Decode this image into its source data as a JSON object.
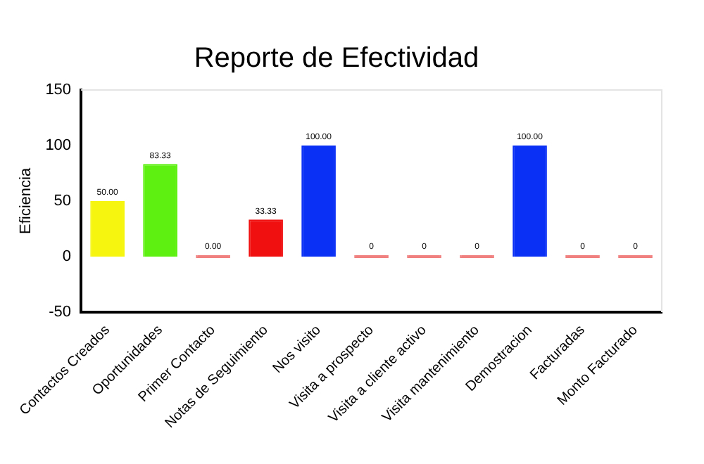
{
  "chart_data": {
    "type": "bar",
    "title": "Reporte de Efectividad",
    "ylabel": "Eficiencia",
    "categories": [
      "Contactos Creados",
      "Oportunidades",
      "Primer Contacto",
      "Notas de Seguimiento",
      "Nos visito",
      "Visita a prospecto",
      "Visita a cliente activo",
      "Visita mantenimiento",
      "Demostracion",
      "Facturadas",
      "Monto Facturado"
    ],
    "values": [
      50,
      83.33,
      0,
      33.33,
      100,
      0,
      0,
      0,
      100,
      0,
      0
    ],
    "colors": [
      "#f5f510",
      "#5ef010",
      "#f08080",
      "#f01010",
      "#0a30f5",
      "#f08080",
      "#f08080",
      "#f08080",
      "#0a30f5",
      "#f08080",
      "#f08080"
    ],
    "value_labels": [
      "50.00",
      "83.33",
      "0.00",
      "33.33",
      "100.00",
      "0",
      "0",
      "0",
      "100.00",
      "0",
      "0"
    ],
    "ylim": [
      -50,
      150
    ],
    "yticks": [
      -50,
      0,
      50,
      100,
      150
    ],
    "grid": false,
    "legend": false
  }
}
